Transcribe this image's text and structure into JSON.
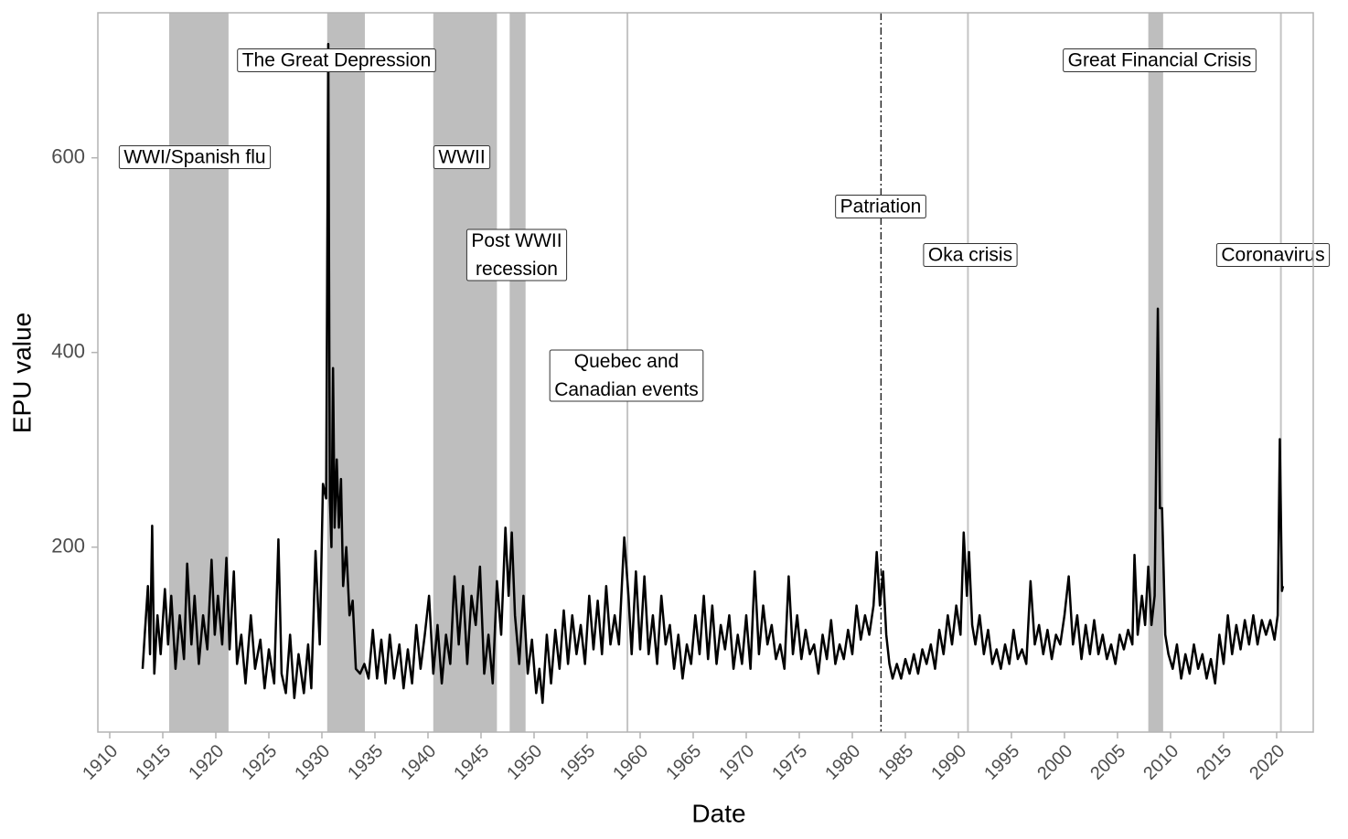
{
  "chart_data": {
    "type": "line",
    "x_label": "Date",
    "y_label": "EPU value",
    "color": "#000000",
    "band_color": "#bebebe",
    "event_line_color": "#c4c4c4",
    "xlim": [
      1908.88,
      2023.45
    ],
    "ylim": [
      10,
      749
    ],
    "xticks": [
      1910,
      1915,
      1920,
      1925,
      1930,
      1935,
      1940,
      1945,
      1950,
      1955,
      1960,
      1965,
      1970,
      1975,
      1980,
      1985,
      1990,
      1995,
      2000,
      2005,
      2010,
      2015,
      2020
    ],
    "yticks": [
      200,
      400,
      600
    ],
    "annotations": [
      {
        "label": [
          "WWI/Spanish flu"
        ],
        "start": 1915.6,
        "end": 1921.2
      },
      {
        "label": [
          "The Great Depression"
        ],
        "start": 1930.5,
        "end": 1934.05
      },
      {
        "label": [
          "WWII"
        ],
        "start": 1940.5,
        "end": 1946.5
      },
      {
        "label": [
          "Post WWII",
          "recession"
        ],
        "start": 1947.7,
        "end": 1949.2
      },
      {
        "label": [
          "Quebec and",
          "Canadian events"
        ],
        "x": 1958.8,
        "linestyle": "solid"
      },
      {
        "label": [
          "Patriation"
        ],
        "x": 1982.7,
        "linestyle": "dashdot"
      },
      {
        "label": [
          "Oka crisis"
        ],
        "x": 1990.9,
        "linestyle": "solid"
      },
      {
        "label": [
          "Great Financial Crisis"
        ],
        "start": 2007.9,
        "end": 2009.3
      },
      {
        "label": [
          "Coronavirus"
        ],
        "x": 2020.4,
        "linestyle": "solid"
      }
    ],
    "x": [
      1913.1,
      1913.3,
      1913.6,
      1913.8,
      1914.0,
      1914.2,
      1914.5,
      1914.8,
      1915.2,
      1915.5,
      1915.8,
      1916.2,
      1916.6,
      1917.0,
      1917.3,
      1917.7,
      1918.0,
      1918.4,
      1918.8,
      1919.2,
      1919.6,
      1919.9,
      1920.2,
      1920.6,
      1921.0,
      1921.3,
      1921.7,
      1922.0,
      1922.4,
      1922.8,
      1923.3,
      1923.7,
      1924.2,
      1924.6,
      1925.0,
      1925.5,
      1925.9,
      1926.2,
      1926.6,
      1927.0,
      1927.4,
      1927.8,
      1928.3,
      1928.7,
      1929.0,
      1929.4,
      1929.8,
      1930.1,
      1930.4,
      1930.6,
      1930.75,
      1930.9,
      1931.05,
      1931.2,
      1931.4,
      1931.6,
      1931.8,
      1932.0,
      1932.3,
      1932.6,
      1932.9,
      1933.2,
      1933.6,
      1934.0,
      1934.4,
      1934.8,
      1935.2,
      1935.6,
      1936.0,
      1936.4,
      1936.8,
      1937.3,
      1937.7,
      1938.1,
      1938.5,
      1938.9,
      1939.3,
      1939.7,
      1940.1,
      1940.5,
      1940.9,
      1941.3,
      1941.7,
      1942.1,
      1942.5,
      1942.9,
      1943.3,
      1943.7,
      1944.1,
      1944.5,
      1944.9,
      1945.3,
      1945.7,
      1946.1,
      1946.5,
      1946.9,
      1947.3,
      1947.6,
      1947.9,
      1948.2,
      1948.6,
      1949.0,
      1949.4,
      1949.8,
      1950.2,
      1950.5,
      1950.8,
      1951.2,
      1951.6,
      1952.0,
      1952.4,
      1952.8,
      1953.2,
      1953.6,
      1954.0,
      1954.4,
      1954.8,
      1955.2,
      1955.6,
      1956.0,
      1956.4,
      1956.8,
      1957.2,
      1957.6,
      1958.0,
      1958.5,
      1958.9,
      1959.2,
      1959.6,
      1960.0,
      1960.4,
      1960.8,
      1961.2,
      1961.6,
      1962.0,
      1962.4,
      1962.8,
      1963.2,
      1963.6,
      1964.0,
      1964.4,
      1964.8,
      1965.2,
      1965.6,
      1966.0,
      1966.4,
      1966.8,
      1967.2,
      1967.6,
      1968.0,
      1968.4,
      1968.8,
      1969.2,
      1969.6,
      1970.0,
      1970.4,
      1970.8,
      1971.2,
      1971.6,
      1972.0,
      1972.4,
      1972.8,
      1973.2,
      1973.6,
      1974.0,
      1974.4,
      1974.8,
      1975.2,
      1975.6,
      1976.0,
      1976.4,
      1976.8,
      1977.2,
      1977.6,
      1978.0,
      1978.4,
      1978.8,
      1979.2,
      1979.6,
      1980.0,
      1980.4,
      1980.8,
      1981.2,
      1981.6,
      1982.0,
      1982.3,
      1982.6,
      1982.9,
      1983.2,
      1983.5,
      1983.8,
      1984.2,
      1984.6,
      1985.0,
      1985.4,
      1985.8,
      1986.2,
      1986.6,
      1987.0,
      1987.4,
      1987.8,
      1988.2,
      1988.6,
      1989.0,
      1989.4,
      1989.8,
      1990.2,
      1990.5,
      1990.8,
      1991.0,
      1991.3,
      1991.6,
      1992.0,
      1992.4,
      1992.8,
      1993.2,
      1993.6,
      1994.0,
      1994.4,
      1994.8,
      1995.2,
      1995.6,
      1996.0,
      1996.4,
      1996.8,
      1997.2,
      1997.6,
      1998.0,
      1998.4,
      1998.8,
      1999.2,
      1999.6,
      2000.0,
      2000.4,
      2000.8,
      2001.2,
      2001.6,
      2002.0,
      2002.4,
      2002.8,
      2003.2,
      2003.6,
      2004.0,
      2004.4,
      2004.8,
      2005.2,
      2005.6,
      2006.0,
      2006.4,
      2006.6,
      2006.9,
      2007.3,
      2007.6,
      2007.9,
      2008.2,
      2008.5,
      2008.8,
      2009.0,
      2009.2,
      2009.5,
      2009.8,
      2010.2,
      2010.6,
      2011.0,
      2011.4,
      2011.8,
      2012.2,
      2012.6,
      2013.0,
      2013.4,
      2013.8,
      2014.2,
      2014.6,
      2015.0,
      2015.4,
      2015.8,
      2016.2,
      2016.6,
      2017.0,
      2017.4,
      2017.8,
      2018.2,
      2018.6,
      2019.0,
      2019.4,
      2019.8,
      2020.1,
      2020.3,
      2020.5,
      2020.6
    ],
    "values": [
      75,
      110,
      160,
      90,
      222,
      70,
      130,
      90,
      157,
      100,
      150,
      75,
      130,
      85,
      183,
      100,
      150,
      80,
      130,
      95,
      187,
      110,
      150,
      100,
      189,
      95,
      175,
      80,
      110,
      60,
      130,
      75,
      105,
      55,
      95,
      60,
      208,
      70,
      50,
      110,
      45,
      90,
      50,
      100,
      55,
      196,
      100,
      265,
      250,
      717,
      250,
      200,
      384,
      220,
      290,
      220,
      270,
      160,
      200,
      130,
      145,
      75,
      70,
      80,
      65,
      115,
      65,
      105,
      60,
      110,
      65,
      100,
      55,
      95,
      60,
      120,
      75,
      110,
      150,
      70,
      120,
      60,
      110,
      80,
      170,
      100,
      160,
      80,
      150,
      120,
      180,
      70,
      110,
      60,
      165,
      110,
      220,
      150,
      215,
      130,
      80,
      150,
      70,
      105,
      50,
      75,
      40,
      110,
      60,
      115,
      75,
      135,
      80,
      130,
      90,
      120,
      80,
      150,
      95,
      145,
      90,
      160,
      100,
      130,
      100,
      210,
      150,
      90,
      175,
      95,
      170,
      90,
      130,
      80,
      150,
      100,
      120,
      75,
      110,
      65,
      100,
      80,
      130,
      90,
      150,
      85,
      140,
      80,
      120,
      95,
      130,
      75,
      110,
      80,
      130,
      75,
      175,
      90,
      140,
      100,
      120,
      85,
      100,
      75,
      170,
      90,
      130,
      85,
      115,
      90,
      100,
      70,
      110,
      85,
      125,
      80,
      100,
      85,
      115,
      90,
      140,
      105,
      130,
      110,
      140,
      195,
      140,
      175,
      110,
      80,
      65,
      80,
      65,
      85,
      70,
      90,
      70,
      95,
      80,
      100,
      75,
      115,
      90,
      130,
      100,
      140,
      110,
      215,
      150,
      195,
      120,
      100,
      130,
      90,
      115,
      80,
      95,
      75,
      100,
      80,
      115,
      85,
      95,
      80,
      165,
      100,
      120,
      90,
      115,
      85,
      110,
      100,
      130,
      170,
      100,
      130,
      85,
      120,
      90,
      125,
      90,
      110,
      85,
      100,
      80,
      110,
      95,
      115,
      100,
      192,
      110,
      150,
      120,
      180,
      120,
      150,
      445,
      240,
      240,
      110,
      90,
      75,
      100,
      65,
      90,
      70,
      100,
      75,
      90,
      65,
      85,
      60,
      110,
      80,
      130,
      90,
      120,
      95,
      125,
      100,
      130,
      100,
      125,
      110,
      125,
      105,
      130,
      311,
      155,
      160
    ]
  }
}
